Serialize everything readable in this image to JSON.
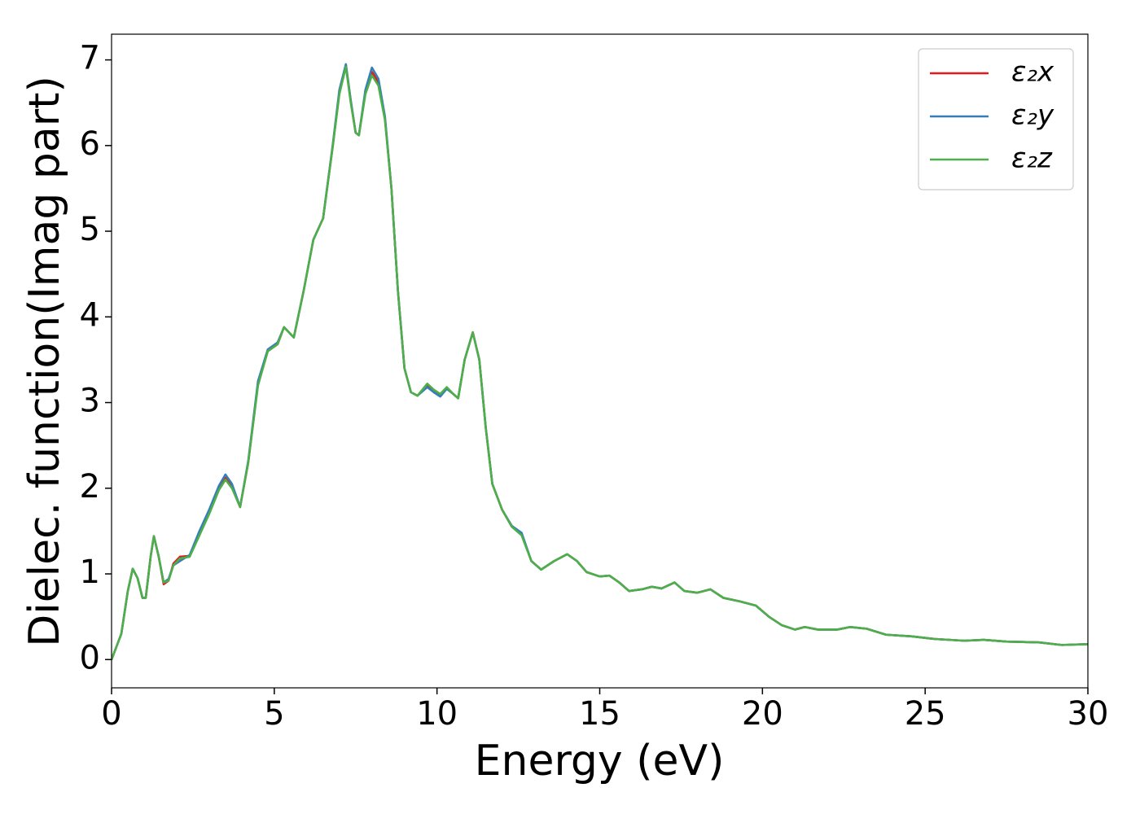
{
  "chart_data": {
    "type": "line",
    "xlabel": "Energy (eV)",
    "ylabel": "Dielec. function(Imag part)",
    "x": [
      0,
      0.3,
      0.5,
      0.65,
      0.8,
      0.95,
      1.05,
      1.2,
      1.3,
      1.45,
      1.6,
      1.75,
      1.9,
      2.1,
      2.4,
      2.7,
      3.0,
      3.3,
      3.5,
      3.7,
      3.95,
      4.2,
      4.5,
      4.8,
      5.1,
      5.3,
      5.45,
      5.6,
      5.9,
      6.2,
      6.5,
      6.8,
      7.0,
      7.2,
      7.35,
      7.5,
      7.6,
      7.8,
      8.0,
      8.2,
      8.4,
      8.6,
      8.8,
      9.0,
      9.2,
      9.4,
      9.7,
      9.9,
      10.1,
      10.3,
      10.5,
      10.65,
      10.85,
      11.1,
      11.3,
      11.5,
      11.7,
      12.0,
      12.3,
      12.6,
      12.9,
      13.2,
      13.6,
      14.0,
      14.3,
      14.6,
      15.0,
      15.3,
      15.6,
      15.9,
      16.3,
      16.6,
      16.9,
      17.3,
      17.6,
      18.0,
      18.4,
      18.8,
      19.3,
      19.8,
      20.2,
      20.6,
      21.0,
      21.3,
      21.7,
      22.3,
      22.7,
      23.2,
      23.8,
      24.6,
      25.3,
      26.2,
      26.8,
      27.5,
      28.5,
      29.2,
      30
    ],
    "series": [
      {
        "name": "ε₂x",
        "color": "#e41a1c",
        "values": [
          0,
          0.3,
          0.8,
          1.06,
          0.95,
          0.72,
          0.72,
          1.2,
          1.44,
          1.2,
          0.88,
          0.92,
          1.12,
          1.2,
          1.21,
          1.47,
          1.72,
          2.0,
          2.12,
          2.02,
          1.78,
          2.3,
          3.22,
          3.6,
          3.68,
          3.88,
          3.82,
          3.76,
          4.3,
          4.9,
          5.15,
          6.0,
          6.62,
          6.94,
          6.52,
          6.15,
          6.12,
          6.62,
          6.86,
          6.74,
          6.32,
          5.5,
          4.3,
          3.4,
          3.12,
          3.08,
          3.2,
          3.14,
          3.09,
          3.17,
          3.1,
          3.05,
          3.5,
          3.82,
          3.5,
          2.7,
          2.05,
          1.75,
          1.55,
          1.46,
          1.15,
          1.05,
          1.15,
          1.23,
          1.15,
          1.02,
          0.97,
          0.98,
          0.9,
          0.8,
          0.82,
          0.85,
          0.83,
          0.9,
          0.8,
          0.78,
          0.82,
          0.72,
          0.68,
          0.63,
          0.5,
          0.4,
          0.35,
          0.38,
          0.35,
          0.35,
          0.38,
          0.36,
          0.29,
          0.27,
          0.24,
          0.22,
          0.23,
          0.21,
          0.2,
          0.17,
          0.18
        ]
      },
      {
        "name": "ε₂y",
        "color": "#377eb8",
        "values": [
          0,
          0.3,
          0.8,
          1.06,
          0.95,
          0.72,
          0.72,
          1.2,
          1.44,
          1.2,
          0.9,
          0.94,
          1.1,
          1.15,
          1.22,
          1.5,
          1.75,
          2.03,
          2.16,
          2.05,
          1.78,
          2.32,
          3.25,
          3.62,
          3.7,
          3.88,
          3.82,
          3.76,
          4.3,
          4.9,
          5.15,
          6.02,
          6.65,
          6.95,
          6.53,
          6.15,
          6.12,
          6.65,
          6.91,
          6.78,
          6.34,
          5.5,
          4.3,
          3.4,
          3.12,
          3.08,
          3.18,
          3.12,
          3.07,
          3.16,
          3.1,
          3.05,
          3.5,
          3.82,
          3.5,
          2.7,
          2.05,
          1.75,
          1.56,
          1.48,
          1.15,
          1.05,
          1.15,
          1.23,
          1.15,
          1.02,
          0.97,
          0.98,
          0.9,
          0.8,
          0.82,
          0.85,
          0.83,
          0.9,
          0.8,
          0.78,
          0.82,
          0.72,
          0.68,
          0.63,
          0.5,
          0.4,
          0.35,
          0.38,
          0.35,
          0.35,
          0.38,
          0.36,
          0.29,
          0.27,
          0.24,
          0.22,
          0.23,
          0.21,
          0.2,
          0.17,
          0.18
        ]
      },
      {
        "name": "ε₂z",
        "color": "#4daf4a",
        "values": [
          0,
          0.3,
          0.8,
          1.06,
          0.95,
          0.72,
          0.72,
          1.2,
          1.44,
          1.2,
          0.9,
          0.92,
          1.1,
          1.18,
          1.2,
          1.45,
          1.7,
          1.98,
          2.1,
          2.0,
          1.78,
          2.3,
          3.2,
          3.6,
          3.68,
          3.88,
          3.82,
          3.76,
          4.3,
          4.9,
          5.15,
          6.0,
          6.6,
          6.92,
          6.5,
          6.15,
          6.12,
          6.6,
          6.82,
          6.7,
          6.3,
          5.5,
          4.3,
          3.4,
          3.12,
          3.08,
          3.22,
          3.15,
          3.1,
          3.18,
          3.1,
          3.05,
          3.5,
          3.82,
          3.5,
          2.7,
          2.05,
          1.75,
          1.55,
          1.45,
          1.15,
          1.05,
          1.15,
          1.23,
          1.15,
          1.02,
          0.97,
          0.98,
          0.9,
          0.8,
          0.82,
          0.85,
          0.83,
          0.9,
          0.8,
          0.78,
          0.82,
          0.72,
          0.68,
          0.63,
          0.5,
          0.4,
          0.35,
          0.38,
          0.35,
          0.35,
          0.38,
          0.36,
          0.29,
          0.27,
          0.24,
          0.22,
          0.23,
          0.21,
          0.2,
          0.17,
          0.18
        ]
      }
    ],
    "xlim": [
      0,
      30
    ],
    "ylim": [
      -0.33,
      7.3
    ],
    "xticks": [
      0,
      5,
      10,
      15,
      20,
      25,
      30
    ],
    "yticks": [
      0,
      1,
      2,
      3,
      4,
      5,
      6,
      7
    ],
    "grid": false,
    "legend": "upper right"
  }
}
